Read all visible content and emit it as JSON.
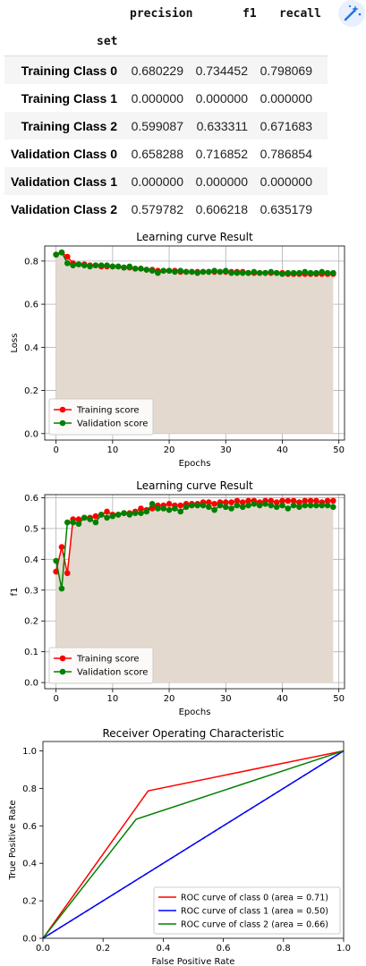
{
  "table": {
    "columns": [
      "precision",
      "f1",
      "recall"
    ],
    "index_name": "set",
    "rows": [
      {
        "label": "Training Class 0",
        "precision": "0.680229",
        "f1": "0.734452",
        "recall": "0.798069"
      },
      {
        "label": "Training Class 1",
        "precision": "0.000000",
        "f1": "0.000000",
        "recall": "0.000000"
      },
      {
        "label": "Training Class 2",
        "precision": "0.599087",
        "f1": "0.633311",
        "recall": "0.671683"
      },
      {
        "label": "Validation Class 0",
        "precision": "0.658288",
        "f1": "0.716852",
        "recall": "0.786854"
      },
      {
        "label": "Validation Class 1",
        "precision": "0.000000",
        "f1": "0.000000",
        "recall": "0.000000"
      },
      {
        "label": "Validation Class 2",
        "precision": "0.579782",
        "f1": "0.606218",
        "recall": "0.635179"
      }
    ]
  },
  "icons": {
    "toolbar": "magic-wand-icon"
  },
  "chart_data": [
    {
      "type": "line",
      "title": "Learning curve Result",
      "xlabel": "Epochs",
      "ylabel": "Loss",
      "xlim": [
        -2,
        51
      ],
      "ylim": [
        -0.03,
        0.87
      ],
      "xticks": [
        "0",
        "10",
        "20",
        "30",
        "40",
        "50"
      ],
      "yticks": [
        "0.0",
        "0.2",
        "0.4",
        "0.6",
        "0.8"
      ],
      "grid": true,
      "legend": "lower-left",
      "fill_color": "#e3d9ce",
      "series": [
        {
          "name": "Training score",
          "color": "#ff0000",
          "values": [
            0.83,
            0.84,
            0.82,
            0.79,
            0.785,
            0.785,
            0.78,
            0.78,
            0.775,
            0.775,
            0.775,
            0.775,
            0.77,
            0.77,
            0.765,
            0.765,
            0.76,
            0.76,
            0.755,
            0.755,
            0.755,
            0.755,
            0.75,
            0.75,
            0.75,
            0.75,
            0.75,
            0.75,
            0.75,
            0.75,
            0.75,
            0.75,
            0.75,
            0.75,
            0.745,
            0.745,
            0.745,
            0.745,
            0.745,
            0.745,
            0.745,
            0.74,
            0.74,
            0.74,
            0.74,
            0.74,
            0.74,
            0.74,
            0.74,
            0.74
          ]
        },
        {
          "name": "Validation score",
          "color": "#008000",
          "values": [
            0.83,
            0.84,
            0.79,
            0.78,
            0.785,
            0.78,
            0.775,
            0.78,
            0.78,
            0.78,
            0.775,
            0.775,
            0.77,
            0.775,
            0.765,
            0.765,
            0.76,
            0.755,
            0.745,
            0.755,
            0.755,
            0.75,
            0.755,
            0.75,
            0.75,
            0.745,
            0.75,
            0.75,
            0.755,
            0.75,
            0.755,
            0.745,
            0.745,
            0.745,
            0.745,
            0.75,
            0.745,
            0.745,
            0.75,
            0.745,
            0.74,
            0.745,
            0.745,
            0.745,
            0.75,
            0.745,
            0.745,
            0.75,
            0.745,
            0.745
          ]
        }
      ]
    },
    {
      "type": "line",
      "title": "Learning curve Result",
      "xlabel": "Epochs",
      "ylabel": "f1",
      "xlim": [
        -2,
        51
      ],
      "ylim": [
        -0.02,
        0.61
      ],
      "xticks": [
        "0",
        "10",
        "20",
        "30",
        "40",
        "50"
      ],
      "yticks": [
        "0.0",
        "0.1",
        "0.2",
        "0.3",
        "0.4",
        "0.5",
        "0.6"
      ],
      "grid": true,
      "legend": "lower-left",
      "fill_color": "#e3d9ce",
      "series": [
        {
          "name": "Training score",
          "color": "#ff0000",
          "values": [
            0.36,
            0.44,
            0.355,
            0.53,
            0.53,
            0.535,
            0.535,
            0.54,
            0.545,
            0.555,
            0.545,
            0.545,
            0.55,
            0.55,
            0.555,
            0.565,
            0.56,
            0.565,
            0.575,
            0.575,
            0.58,
            0.575,
            0.575,
            0.58,
            0.58,
            0.58,
            0.585,
            0.585,
            0.58,
            0.585,
            0.585,
            0.585,
            0.59,
            0.585,
            0.59,
            0.59,
            0.585,
            0.59,
            0.59,
            0.585,
            0.59,
            0.59,
            0.59,
            0.585,
            0.59,
            0.59,
            0.59,
            0.585,
            0.59,
            0.59
          ]
        },
        {
          "name": "Validation score",
          "color": "#008000",
          "values": [
            0.395,
            0.305,
            0.52,
            0.52,
            0.515,
            0.535,
            0.53,
            0.52,
            0.545,
            0.535,
            0.54,
            0.545,
            0.55,
            0.545,
            0.55,
            0.55,
            0.555,
            0.58,
            0.565,
            0.565,
            0.56,
            0.565,
            0.555,
            0.57,
            0.575,
            0.575,
            0.575,
            0.57,
            0.56,
            0.575,
            0.57,
            0.565,
            0.575,
            0.57,
            0.575,
            0.58,
            0.575,
            0.58,
            0.575,
            0.57,
            0.575,
            0.565,
            0.575,
            0.57,
            0.575,
            0.575,
            0.575,
            0.575,
            0.575,
            0.57
          ]
        }
      ]
    },
    {
      "type": "line",
      "title": "Receiver Operating Characteristic",
      "xlabel": "False Positive Rate",
      "ylabel": "True Positive Rate",
      "xlim": [
        0,
        1
      ],
      "ylim": [
        0,
        1.05
      ],
      "xticks": [
        "0.0",
        "0.2",
        "0.4",
        "0.6",
        "0.8",
        "1.0"
      ],
      "yticks": [
        "0.0",
        "0.2",
        "0.4",
        "0.6",
        "0.8",
        "1.0"
      ],
      "grid": false,
      "legend": "lower-right",
      "series": [
        {
          "name": "ROC curve of class 0 (area = 0.71)",
          "color": "#ff0000",
          "x": [
            0,
            0.35,
            1
          ],
          "y": [
            0,
            0.786854,
            1
          ]
        },
        {
          "name": "ROC curve of class 1 (area = 0.50)",
          "color": "#0000ff",
          "x": [
            0,
            1
          ],
          "y": [
            0,
            1
          ]
        },
        {
          "name": "ROC curve of class 2 (area = 0.66)",
          "color": "#008000",
          "x": [
            0,
            0.31,
            1
          ],
          "y": [
            0,
            0.635179,
            1
          ]
        }
      ],
      "diagonal": {
        "color": "#000000",
        "style": "dashed",
        "x": [
          0,
          1
        ],
        "y": [
          0,
          1
        ]
      }
    }
  ]
}
